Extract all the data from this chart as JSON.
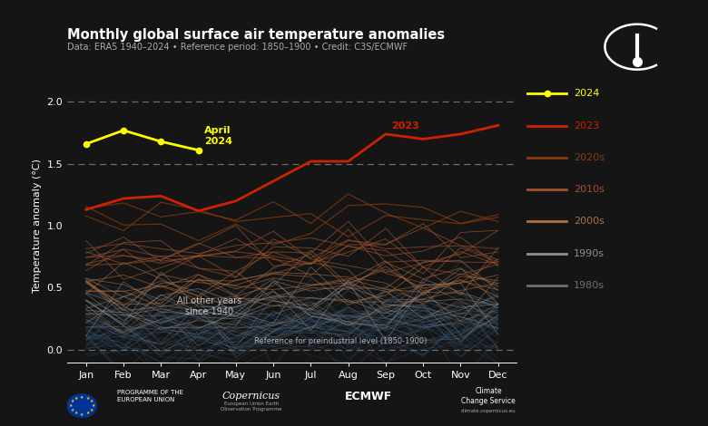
{
  "title": "Monthly global surface air temperature anomalies",
  "subtitle": "Data: ERA5 1940–2024 • Reference period: 1850–1900 • Credit: C3S/ECMWF",
  "ylabel": "Temperature anomaly (°C)",
  "bg_color": "#151515",
  "months": [
    "Jan",
    "Feb",
    "Mar",
    "Apr",
    "May",
    "Jun",
    "Jul",
    "Aug",
    "Sep",
    "Oct",
    "Nov",
    "Dec"
  ],
  "y2024": [
    1.66,
    1.77,
    1.68,
    1.61,
    null,
    null,
    null,
    null,
    null,
    null,
    null,
    null
  ],
  "y2023": [
    1.13,
    1.22,
    1.24,
    1.12,
    1.2,
    1.36,
    1.52,
    1.52,
    1.74,
    1.7,
    1.74,
    1.81
  ],
  "ylim": [
    -0.1,
    2.1
  ],
  "dashed_lines": [
    0.0,
    1.5,
    2.0
  ],
  "decade_colors": {
    "2020s": "#8B3A0F",
    "2010s": "#A0522D",
    "2000s": "#B07040",
    "1990s": "#909090",
    "1980s": "#707070"
  },
  "decade_alpha": {
    "2020s": 0.75,
    "2010s": 0.65,
    "2000s": 0.55,
    "1990s": 0.5,
    "1980s": 0.45
  },
  "older_color": "#4477AA",
  "older_alpha": 0.28,
  "annotation_april": "April\n2024",
  "annotation_2023": "2023",
  "reference_label": "Reference for preindustrial level (1850-1900)",
  "other_years_label": "All other years\nsince 1940",
  "legend_items": [
    {
      "label": "2024",
      "color": "#FFFF00",
      "marker": true
    },
    {
      "label": "2023",
      "color": "#CC2200",
      "marker": false
    },
    {
      "label": "2020s",
      "color": "#8B3A0F",
      "marker": false
    },
    {
      "label": "2010s",
      "color": "#A0522D",
      "marker": false
    },
    {
      "label": "2000s",
      "color": "#B07040",
      "marker": false
    },
    {
      "label": "1990s",
      "color": "#909090",
      "marker": false
    },
    {
      "label": "1980s",
      "color": "#707070",
      "marker": false
    }
  ]
}
